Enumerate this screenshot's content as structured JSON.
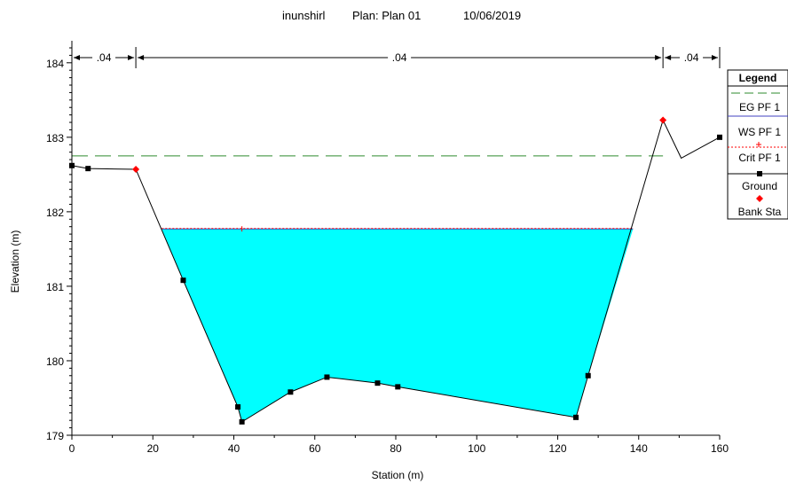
{
  "header": {
    "name": "inunshirl",
    "plan": "Plan: Plan 01",
    "date": "10/06/2019"
  },
  "chart_data": {
    "type": "line",
    "xlabel": "Station (m)",
    "ylabel": "Elevation (m)",
    "xlim": [
      0,
      160
    ],
    "ylim": [
      179,
      184.2
    ],
    "x_ticks": [
      0,
      20,
      40,
      60,
      80,
      100,
      120,
      140,
      160
    ],
    "y_ticks": [
      179,
      180,
      181,
      182,
      183,
      184
    ],
    "colors": {
      "eg": "#2e8b2e",
      "ws": "#4040c0",
      "crit": "#ff0000",
      "ground": "#000000",
      "bank": "#ff0000",
      "water": "#00ffff"
    },
    "ground": {
      "x": [
        0,
        4,
        15.8,
        27.5,
        41,
        42,
        54,
        63,
        75.5,
        80.5,
        124.5,
        127.5,
        146,
        150.5,
        160
      ],
      "y": [
        182.62,
        182.58,
        182.57,
        181.08,
        179.38,
        179.18,
        179.58,
        179.78,
        179.7,
        179.65,
        179.24,
        179.8,
        183.23,
        182.72,
        183.0
      ],
      "markers": [
        [
          0,
          182.62
        ],
        [
          4,
          182.58
        ],
        [
          27.5,
          181.08
        ],
        [
          41,
          179.38
        ],
        [
          42,
          179.18
        ],
        [
          54,
          179.58
        ],
        [
          63,
          179.78
        ],
        [
          75.5,
          179.7
        ],
        [
          80.5,
          179.65
        ],
        [
          124.5,
          179.24
        ],
        [
          127.5,
          179.8
        ],
        [
          160,
          183.0
        ]
      ]
    },
    "eg_pf1": 182.75,
    "ws_pf1": 181.77,
    "ws_extent": [
      22.2,
      138.6
    ],
    "crit_marker_x": 42,
    "bank_stations": [
      [
        15.8,
        182.57
      ],
      [
        146,
        183.23
      ]
    ],
    "manning_n": [
      {
        "label": ".04",
        "from": 0,
        "to": 15.8
      },
      {
        "label": ".04",
        "from": 15.8,
        "to": 146
      },
      {
        "label": ".04",
        "from": 146,
        "to": 160
      }
    ],
    "legend": {
      "title": "Legend",
      "items": [
        "EG PF 1",
        "WS PF 1",
        "Crit PF 1",
        "Ground",
        "Bank Sta"
      ]
    }
  }
}
